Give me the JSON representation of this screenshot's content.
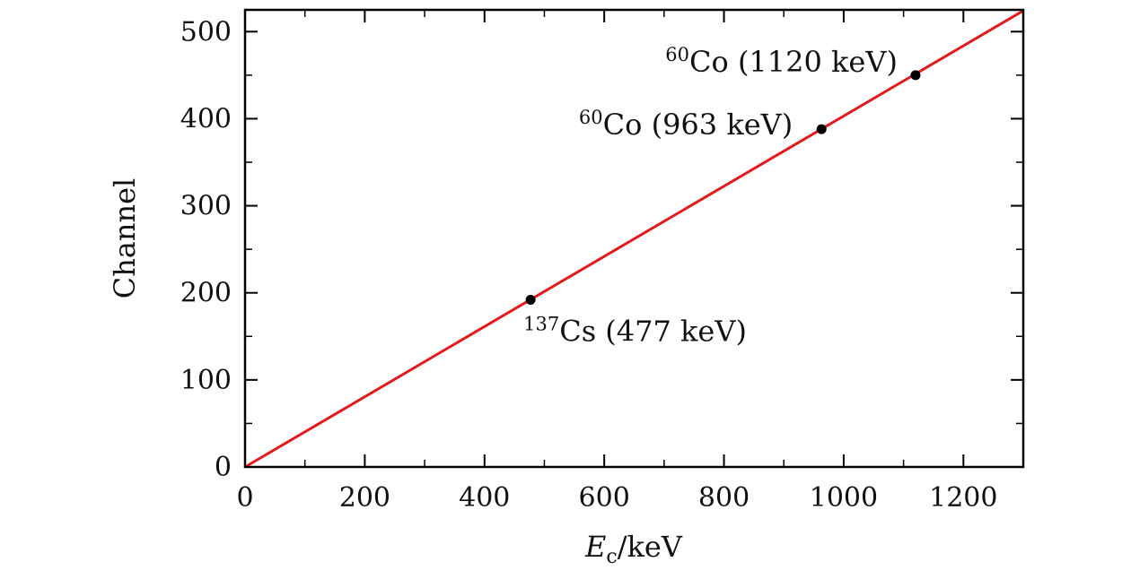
{
  "chart_data": {
    "type": "scatter",
    "title": "",
    "xlabel_main": "E",
    "xlabel_sub": "c",
    "xlabel_unit": "/keV",
    "ylabel": "Channel",
    "xlim": [
      0,
      1300
    ],
    "ylim": [
      0,
      525
    ],
    "x_ticks": [
      0,
      200,
      400,
      600,
      800,
      1000,
      1200
    ],
    "y_ticks": [
      0,
      100,
      200,
      300,
      400,
      500
    ],
    "x_tick_labels": [
      "0",
      "200",
      "400",
      "600",
      "800",
      "1000",
      "1200"
    ],
    "y_tick_labels": [
      "0",
      "100",
      "200",
      "300",
      "400",
      "500"
    ],
    "points": [
      {
        "x": 477,
        "y": 192,
        "sup": "137",
        "label": "Cs (477 keV)"
      },
      {
        "x": 963,
        "y": 388,
        "sup": "60",
        "label": "Co (963 keV)"
      },
      {
        "x": 1120,
        "y": 450,
        "sup": "60",
        "label": "Co (1120 keV)"
      }
    ],
    "fit_line": {
      "x": [
        0,
        1300
      ],
      "y": [
        0,
        524
      ],
      "color": "#e31a1c"
    },
    "grid": false,
    "point_color": "#000000"
  }
}
